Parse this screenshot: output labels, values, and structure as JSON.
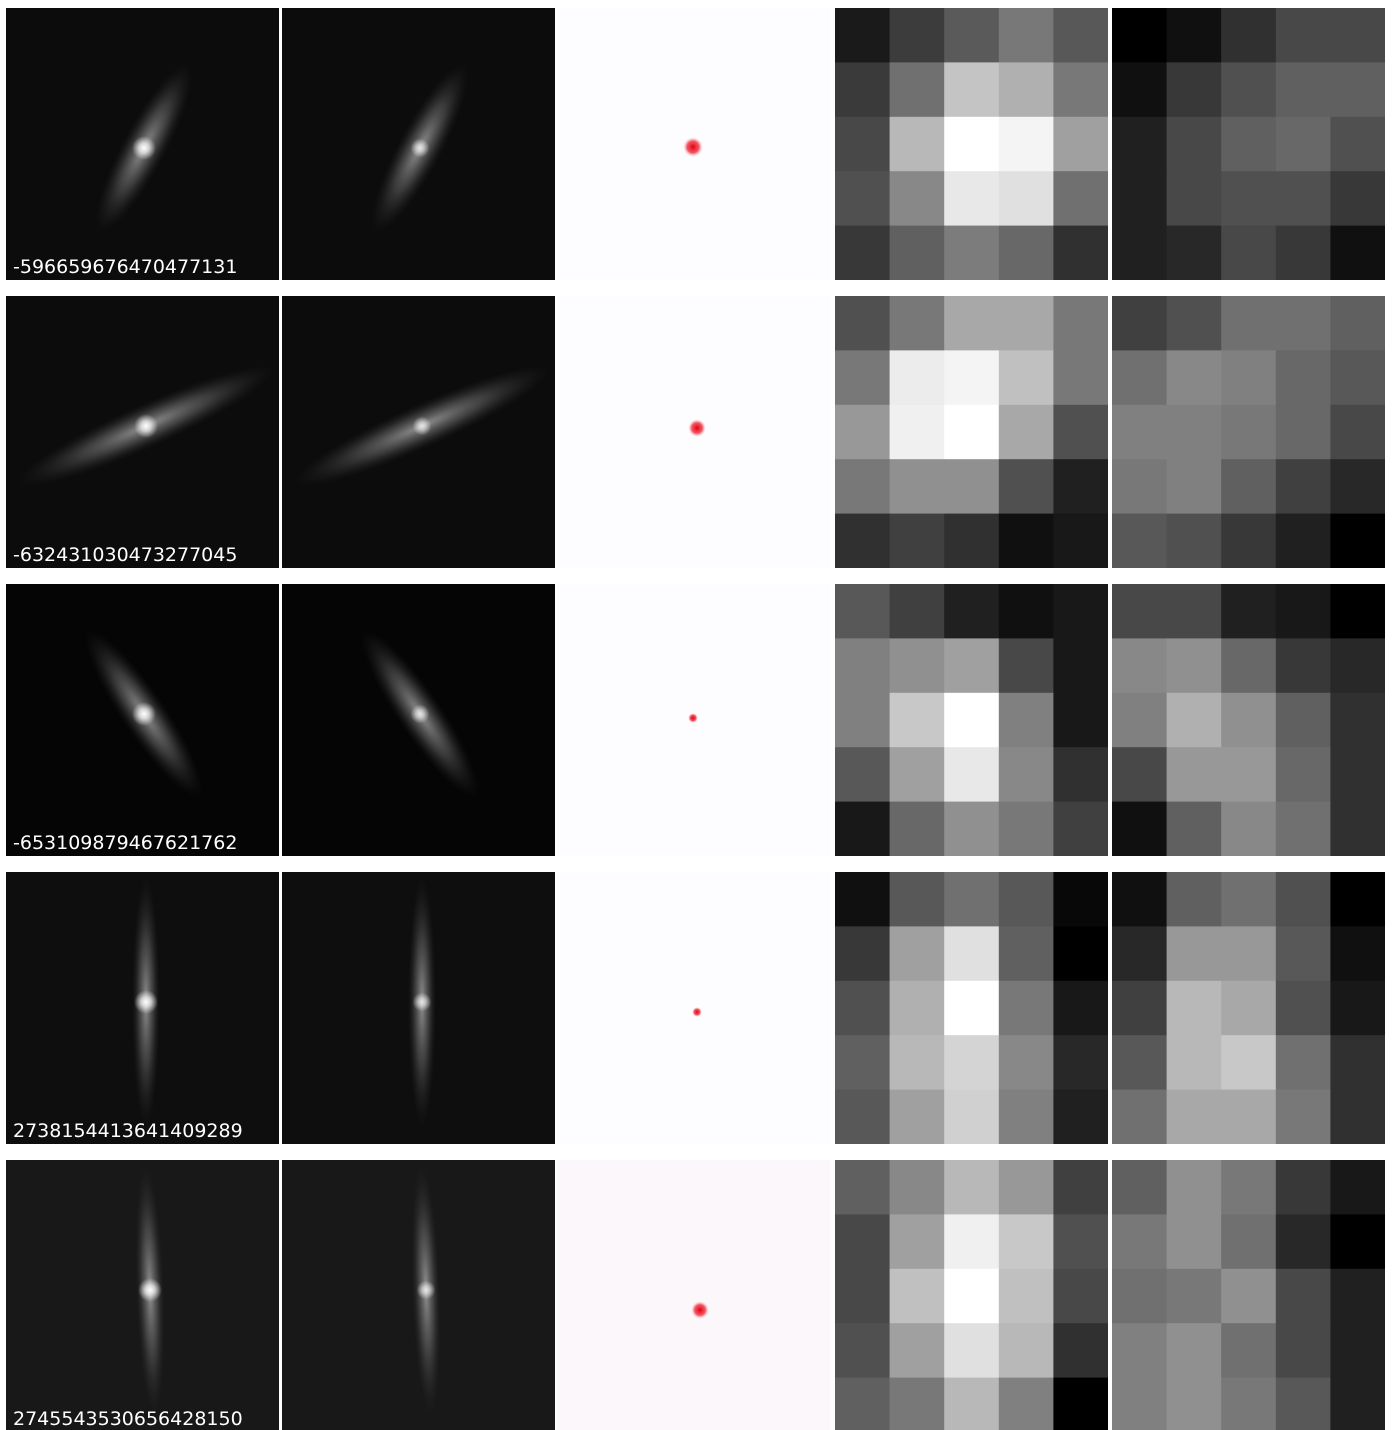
{
  "rows": [
    {
      "id": "-596659676470477131"
    },
    {
      "id": "-632431030473277045"
    },
    {
      "id": "-653109879467621762"
    },
    {
      "id": "2738154413641409289"
    },
    {
      "id": "2745543530656428150"
    }
  ]
}
